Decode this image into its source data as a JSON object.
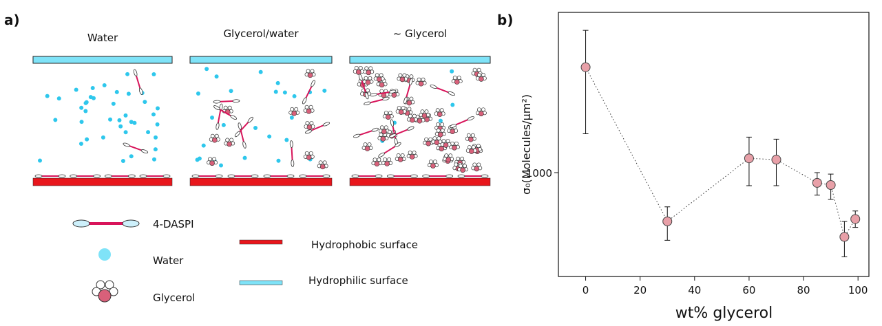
{
  "panel_a": {
    "label": "a)",
    "titles": [
      "Water",
      "Glycerol/water",
      "~ Glycerol"
    ],
    "legend": {
      "daspi": "4-DASPI",
      "water": "Water",
      "glycerol": "Glycerol",
      "hydrophobic": "Hydrophobic surface",
      "hydrophilic": "Hydrophilic surface"
    }
  },
  "chart_data": {
    "type": "scatter",
    "panel_label": "b)",
    "x_label": "wt% glycerol",
    "y_label": "σ₀(Molecules/μm²)",
    "x": [
      0,
      30,
      60,
      70,
      85,
      90,
      95,
      99
    ],
    "series": [
      {
        "color": "#e8a0a8",
        "values": [
          1680,
          787,
          1073,
          1066,
          951,
          941,
          729,
          796
        ],
        "err_high": [
          334,
          58,
          118,
          113,
          49,
          52,
          58,
          32
        ],
        "err_low": [
          469,
          70,
          135,
          128,
          56,
          64,
          68,
          32
        ]
      }
    ],
    "xlim": [
      -10,
      104
    ],
    "xticks": [
      0,
      20,
      40,
      60,
      80,
      100
    ],
    "ylim": [
      600,
      2200
    ],
    "yticks": [
      1000
    ],
    "log_y": true,
    "line_style": "dotted"
  }
}
